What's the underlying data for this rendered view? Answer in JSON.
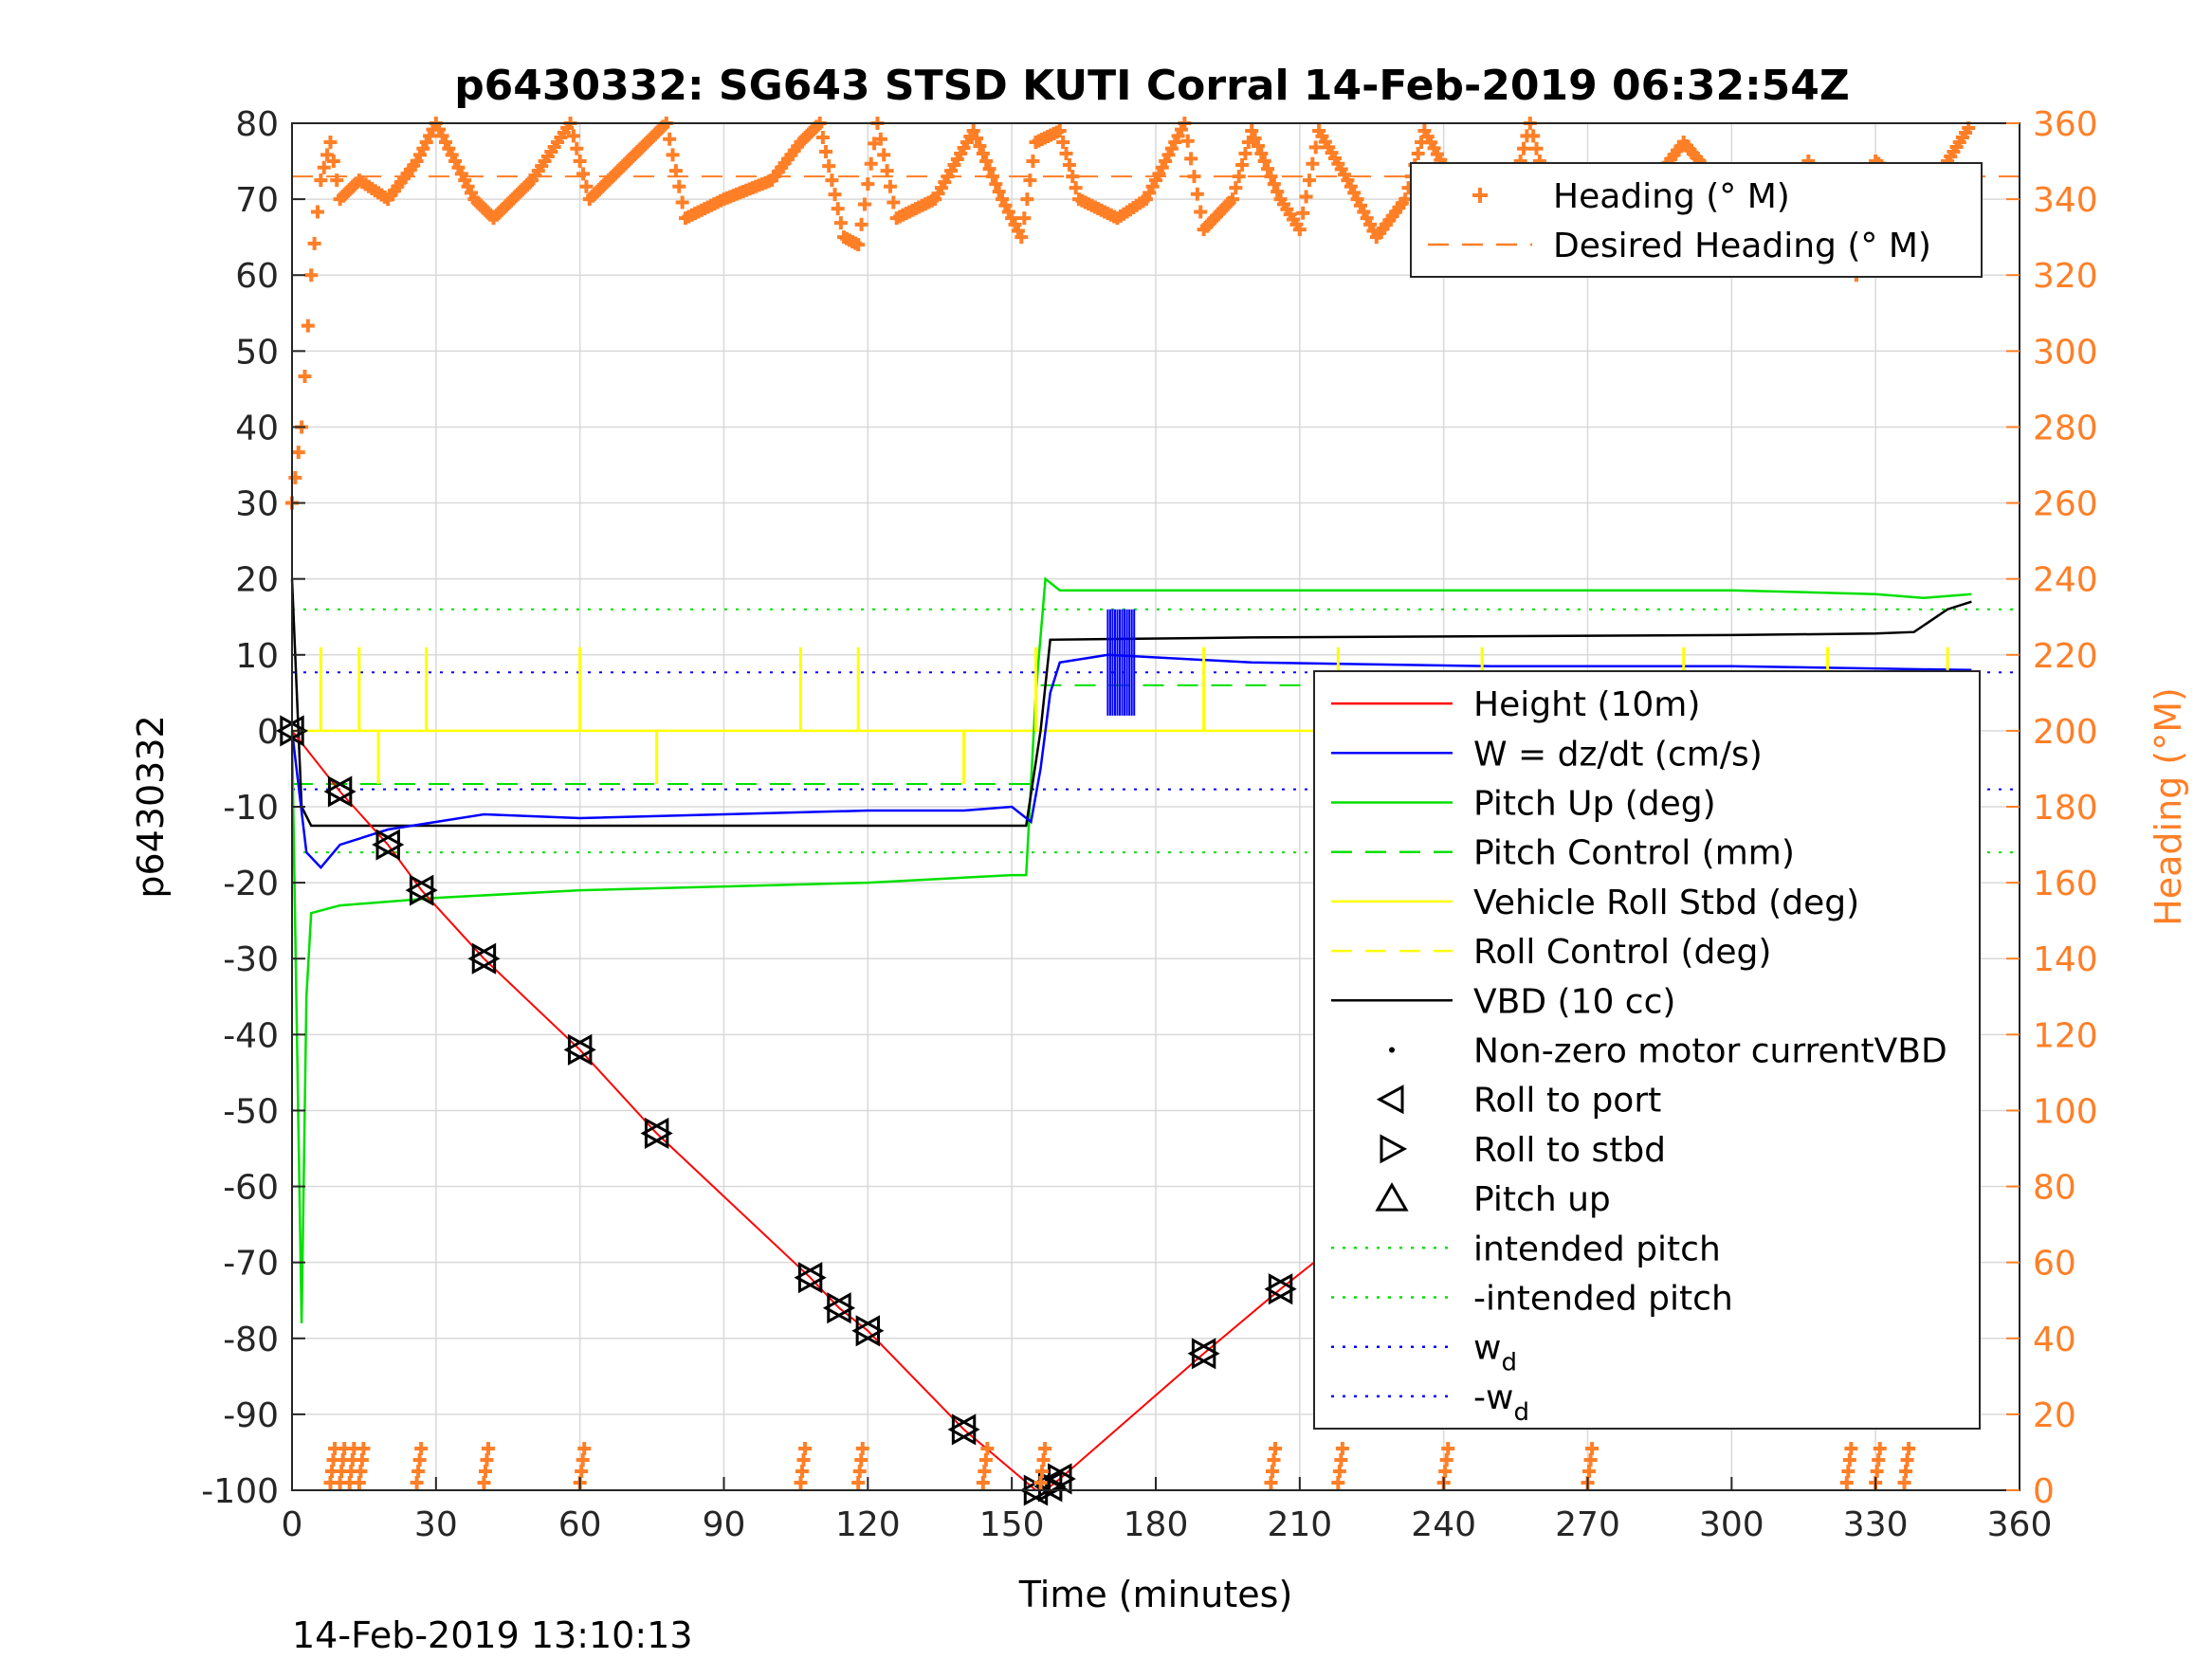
{
  "chart_data": {
    "type": "line",
    "title": "p6430332: SG643 STSD KUTI Corral 14-Feb-2019 06:32:54Z",
    "xlabel": "Time (minutes)",
    "ylabel_left": "p6430332",
    "ylabel_right": "Heading (°M)",
    "footer": "14-Feb-2019 13:10:13",
    "xlim": [
      0,
      360
    ],
    "ylim_left": [
      -100,
      80
    ],
    "ylim_right": [
      0,
      360
    ],
    "x_ticks": [
      "0",
      "30",
      "60",
      "90",
      "120",
      "150",
      "180",
      "210",
      "240",
      "270",
      "300",
      "330",
      "360"
    ],
    "y_ticks_left": [
      "-100",
      "-90",
      "-80",
      "-70",
      "-60",
      "-50",
      "-40",
      "-30",
      "-20",
      "-10",
      "0",
      "10",
      "20",
      "30",
      "40",
      "50",
      "60",
      "70",
      "80"
    ],
    "y_ticks_right": [
      "0",
      "20",
      "40",
      "60",
      "80",
      "100",
      "120",
      "140",
      "160",
      "180",
      "200",
      "220",
      "240",
      "260",
      "280",
      "300",
      "320",
      "340",
      "360"
    ],
    "grid": true,
    "colors": {
      "height": "#ff0000",
      "w": "#0000ff",
      "pitch": "#00e000",
      "roll": "#ffff00",
      "vbd": "#000000",
      "heading": "#ff7f27"
    },
    "legend_top": [
      {
        "label": "Heading (° M)",
        "style": "plus",
        "color": "#ff7f27"
      },
      {
        "label": "Desired Heading (° M)",
        "style": "dash",
        "color": "#ff7f27"
      }
    ],
    "legend_main": [
      {
        "label": "Height (10m)",
        "style": "solid",
        "color": "#ff0000"
      },
      {
        "label": "W = dz/dt (cm/s)",
        "style": "solid",
        "color": "#0000ff"
      },
      {
        "label": "Pitch Up (deg)",
        "style": "solid",
        "color": "#00e000"
      },
      {
        "label": "Pitch Control (mm)",
        "style": "dash",
        "color": "#00e000"
      },
      {
        "label": "Vehicle Roll Stbd (deg)",
        "style": "solid",
        "color": "#ffff00"
      },
      {
        "label": "Roll Control (deg)",
        "style": "dash",
        "color": "#ffff00"
      },
      {
        "label": "VBD (10 cc)",
        "style": "solid",
        "color": "#000000"
      },
      {
        "label": "Non-zero motor currentVBD",
        "style": "dot",
        "color": "#000000"
      },
      {
        "label": "Roll to port",
        "style": "tri-left",
        "color": "#000000"
      },
      {
        "label": "Roll to stbd",
        "style": "tri-right",
        "color": "#000000"
      },
      {
        "label": "Pitch up",
        "style": "tri-up",
        "color": "#000000"
      },
      {
        "label": "intended pitch",
        "style": "dotted",
        "color": "#00e000"
      },
      {
        "label": "-intended pitch",
        "style": "dotted",
        "color": "#00e000"
      },
      {
        "label": "w",
        "sub": "d",
        "style": "dotted",
        "color": "#0000ff"
      },
      {
        "label": "-w",
        "sub": "d",
        "style": "dotted",
        "color": "#0000ff"
      }
    ],
    "series": [
      {
        "name": "Height (10m)",
        "axis": "left",
        "x": [
          0,
          10,
          20,
          27,
          40,
          60,
          76,
          108,
          114,
          120,
          140,
          155,
          158,
          160,
          190,
          206,
          218,
          240,
          260,
          282,
          288,
          298,
          305,
          315,
          322,
          330,
          335,
          341,
          347
        ],
        "y": [
          0,
          -8,
          -15,
          -21,
          -30,
          -42,
          -53,
          -72,
          -76,
          -79,
          -92,
          -100,
          -99.5,
          -98.5,
          -82,
          -73.5,
          -67.5,
          -56.5,
          -45,
          -34,
          -32,
          -27,
          -23.5,
          -18,
          -13.5,
          -9,
          -7,
          -4.5,
          -2
        ]
      },
      {
        "name": "W = dz/dt (cm/s)",
        "axis": "left",
        "x": [
          0,
          3,
          6,
          10,
          20,
          30,
          40,
          60,
          90,
          120,
          140,
          150,
          154,
          156,
          158,
          160,
          170,
          200,
          250,
          300,
          350
        ],
        "y": [
          0,
          -16,
          -18,
          -15,
          -13,
          -12,
          -11,
          -11.5,
          -11,
          -10.5,
          -10.5,
          -10,
          -12,
          -5,
          5,
          9,
          10,
          9,
          8.5,
          8.5,
          8
        ]
      },
      {
        "name": "Pitch Up (deg)",
        "axis": "left",
        "x": [
          0,
          2,
          3,
          4,
          10,
          30,
          60,
          90,
          120,
          150,
          153,
          155,
          157,
          160,
          200,
          250,
          300,
          330,
          340,
          350
        ],
        "y": [
          0,
          -78,
          -35,
          -24,
          -23,
          -22,
          -21,
          -20.5,
          -20,
          -19,
          -19,
          5,
          20,
          18.5,
          18.5,
          18.5,
          18.5,
          18,
          17.5,
          18
        ]
      },
      {
        "name": "Vehicle Roll Stbd (deg)",
        "axis": "left",
        "x": [
          0,
          20,
          60,
          100,
          150,
          155,
          160,
          200,
          250,
          300,
          350
        ],
        "y": [
          0,
          0,
          0,
          0,
          0,
          0,
          0,
          0,
          0,
          0,
          0
        ]
      },
      {
        "name": "VBD (10 cc)",
        "axis": "left",
        "x": [
          0,
          2,
          4,
          153,
          156,
          157,
          158,
          200,
          300,
          330,
          338,
          345,
          350
        ],
        "y": [
          20,
          -10,
          -12.5,
          -12.5,
          0,
          6,
          12,
          12.3,
          12.6,
          12.8,
          13,
          16,
          17
        ]
      }
    ],
    "reference_lines": [
      {
        "name": "intended pitch",
        "axis": "left",
        "y": 16
      },
      {
        "name": "-intended pitch",
        "axis": "left",
        "y": -16
      },
      {
        "name": "w_d",
        "axis": "left",
        "y": 7.7
      },
      {
        "name": "-w_d",
        "axis": "left",
        "y": -7.7
      },
      {
        "name": "Pitch Control (mm)",
        "axis": "left",
        "segments": [
          [
            0,
            154,
            -7
          ],
          [
            156,
            350,
            6
          ]
        ]
      },
      {
        "name": "Desired Heading (° M)",
        "axis": "right",
        "y": 346
      }
    ],
    "heading_top": {
      "x": [
        0,
        2,
        4,
        6,
        8,
        10,
        14,
        20,
        26,
        30,
        38,
        42,
        50,
        58,
        62,
        70,
        78,
        82,
        90,
        100,
        106,
        110,
        115,
        118,
        122,
        126,
        134,
        142,
        148,
        152,
        155,
        160,
        164,
        172,
        178,
        186,
        190,
        196,
        200,
        206,
        210,
        214,
        220,
        226,
        232,
        236,
        246,
        252,
        258,
        262,
        268,
        276,
        284,
        290,
        300,
        310,
        316,
        322,
        326,
        330,
        335,
        340,
        345,
        350
      ],
      "y": [
        260,
        280,
        320,
        345,
        355,
        340,
        345,
        340,
        350,
        360,
        340,
        335,
        345,
        360,
        340,
        350,
        360,
        335,
        340,
        345,
        355,
        360,
        330,
        328,
        360,
        335,
        340,
        358,
        340,
        330,
        355,
        358,
        340,
        335,
        340,
        360,
        332,
        340,
        358,
        340,
        332,
        358,
        345,
        330,
        340,
        358,
        335,
        330,
        360,
        340,
        345,
        332,
        345,
        355,
        340,
        330,
        350,
        335,
        320,
        350,
        345,
        340,
        350,
        360
      ]
    },
    "heading_bottom_x": [
      8,
      10,
      12,
      14,
      26,
      40,
      60,
      106,
      118,
      144,
      156,
      204,
      218,
      240,
      270,
      324,
      330,
      336
    ]
  }
}
